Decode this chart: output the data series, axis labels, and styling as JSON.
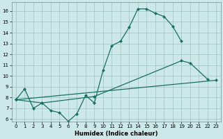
{
  "xlabel": "Humidex (Indice chaleur)",
  "xlim": [
    -0.5,
    23.5
  ],
  "ylim": [
    5.8,
    16.8
  ],
  "yticks": [
    6,
    7,
    8,
    9,
    10,
    11,
    12,
    13,
    14,
    15,
    16
  ],
  "xticks": [
    0,
    1,
    2,
    3,
    4,
    5,
    6,
    7,
    8,
    9,
    10,
    11,
    12,
    13,
    14,
    15,
    16,
    17,
    18,
    19,
    20,
    21,
    22,
    23
  ],
  "background_color": "#cce8e8",
  "grid_color": "#aacccc",
  "line_color": "#1a6e64",
  "line1_x": [
    0,
    1,
    2,
    3,
    4,
    5,
    6,
    7,
    8,
    9,
    10,
    11,
    12,
    13,
    14,
    15,
    16,
    17,
    18,
    19
  ],
  "line1_y": [
    7.8,
    8.8,
    7.0,
    7.5,
    6.8,
    6.6,
    5.8,
    6.5,
    8.2,
    7.5,
    10.5,
    12.8,
    13.2,
    14.5,
    16.2,
    16.2,
    15.8,
    15.5,
    14.6,
    13.2
  ],
  "line2_x": [
    0,
    3,
    9,
    19,
    20,
    22
  ],
  "line2_y": [
    7.8,
    7.5,
    8.1,
    11.4,
    11.2,
    9.7
  ],
  "line3_x": [
    0,
    23
  ],
  "line3_y": [
    7.8,
    9.6
  ]
}
